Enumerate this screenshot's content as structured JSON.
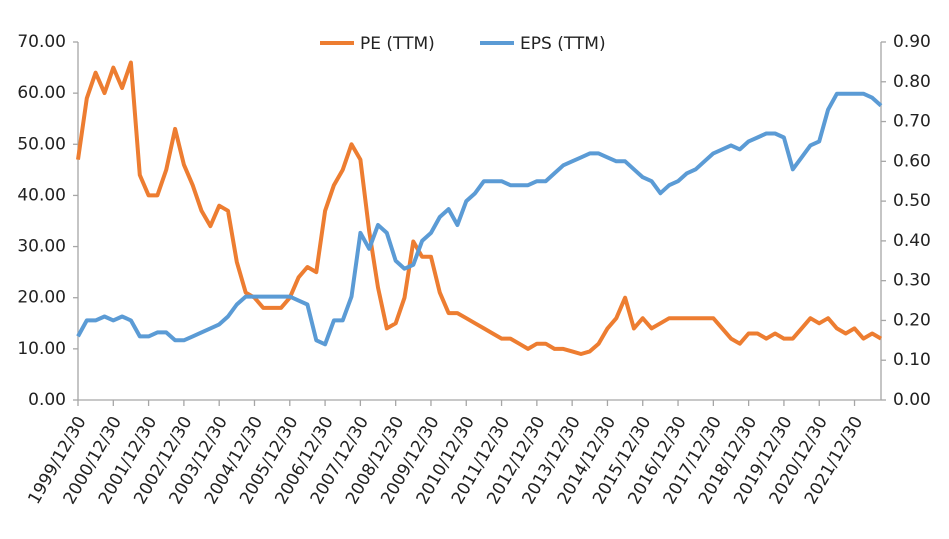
{
  "chart_data": {
    "type": "line",
    "categories": [
      "1999/12/30",
      null,
      null,
      null,
      "2000/12/30",
      null,
      null,
      null,
      "2001/12/30",
      null,
      null,
      null,
      "2002/12/30",
      null,
      null,
      null,
      "2003/12/30",
      null,
      null,
      null,
      "2004/12/30",
      null,
      null,
      null,
      "2005/12/30",
      null,
      null,
      null,
      "2006/12/30",
      null,
      null,
      null,
      "2007/12/30",
      null,
      null,
      null,
      "2008/12/30",
      null,
      null,
      null,
      "2009/12/30",
      null,
      null,
      null,
      "2010/12/30",
      null,
      null,
      null,
      "2011/12/30",
      null,
      null,
      null,
      "2012/12/30",
      null,
      null,
      null,
      "2013/12/30",
      null,
      null,
      null,
      "2014/12/30",
      null,
      null,
      null,
      "2015/12/30",
      null,
      null,
      null,
      "2016/12/30",
      null,
      null,
      null,
      "2017/12/30",
      null,
      null,
      null,
      "2018/12/30",
      null,
      null,
      null,
      "2019/12/30",
      null,
      null,
      null,
      "2020/12/30",
      null,
      null,
      null,
      "2021/12/30",
      null,
      null,
      null
    ],
    "series": [
      {
        "name": "PE (TTM)",
        "color": "#ed7d31",
        "axis": "y",
        "values": [
          47,
          59,
          64,
          60,
          65,
          61,
          66,
          44,
          40,
          40,
          45,
          53,
          46,
          42,
          37,
          34,
          38,
          37,
          27,
          21,
          20,
          18,
          18,
          18,
          20,
          24,
          26,
          25,
          37,
          42,
          45,
          50,
          47,
          33,
          22,
          14,
          15,
          20,
          31,
          28,
          28,
          21,
          17,
          17,
          16,
          15,
          14,
          13,
          12,
          12,
          11,
          10,
          11,
          11,
          10,
          10,
          9.5,
          9,
          9.5,
          11,
          14,
          16,
          20,
          14,
          16,
          14,
          15,
          16,
          16,
          16,
          16,
          16,
          16,
          14,
          12,
          11,
          13,
          13,
          12,
          13,
          12,
          12,
          14,
          16,
          15,
          16,
          14,
          13,
          14,
          12,
          13,
          12
        ]
      },
      {
        "name": "EPS (TTM)",
        "color": "#5b9bd5",
        "axis": "y2",
        "values": [
          0.16,
          0.2,
          0.2,
          0.21,
          0.2,
          0.21,
          0.2,
          0.16,
          0.16,
          0.17,
          0.17,
          0.15,
          0.15,
          0.16,
          0.17,
          0.18,
          0.19,
          0.21,
          0.24,
          0.26,
          0.26,
          0.26,
          0.26,
          0.26,
          0.26,
          0.25,
          0.24,
          0.15,
          0.14,
          0.2,
          0.2,
          0.26,
          0.42,
          0.38,
          0.44,
          0.42,
          0.35,
          0.33,
          0.34,
          0.4,
          0.42,
          0.46,
          0.48,
          0.44,
          0.5,
          0.52,
          0.55,
          0.55,
          0.55,
          0.54,
          0.54,
          0.54,
          0.55,
          0.55,
          0.57,
          0.59,
          0.6,
          0.61,
          0.62,
          0.62,
          0.61,
          0.6,
          0.6,
          0.58,
          0.56,
          0.55,
          0.52,
          0.54,
          0.55,
          0.57,
          0.58,
          0.6,
          0.62,
          0.63,
          0.64,
          0.63,
          0.65,
          0.66,
          0.67,
          0.67,
          0.66,
          0.58,
          0.61,
          0.64,
          0.65,
          0.73,
          0.77,
          0.77,
          0.77,
          0.77,
          0.76,
          0.74
        ]
      }
    ],
    "ylim": [
      0,
      70
    ],
    "yticks": [
      {
        "value": 0,
        "label": "0.00"
      },
      {
        "value": 10,
        "label": "10.00"
      },
      {
        "value": 20,
        "label": "20.00"
      },
      {
        "value": 30,
        "label": "30.00"
      },
      {
        "value": 40,
        "label": "40.00"
      },
      {
        "value": 50,
        "label": "50.00"
      },
      {
        "value": 60,
        "label": "60.00"
      },
      {
        "value": 70,
        "label": "70.00"
      }
    ],
    "y2lim": [
      0,
      0.9
    ],
    "y2ticks": [
      {
        "value": 0,
        "label": "0.00"
      },
      {
        "value": 0.1,
        "label": "0.10"
      },
      {
        "value": 0.2,
        "label": "0.20"
      },
      {
        "value": 0.3,
        "label": "0.30"
      },
      {
        "value": 0.4,
        "label": "0.40"
      },
      {
        "value": 0.5,
        "label": "0.50"
      },
      {
        "value": 0.6,
        "label": "0.60"
      },
      {
        "value": 0.7,
        "label": "0.70"
      },
      {
        "value": 0.8,
        "label": "0.80"
      },
      {
        "value": 0.9,
        "label": "0.90"
      }
    ],
    "legend": "top",
    "grid": false
  }
}
